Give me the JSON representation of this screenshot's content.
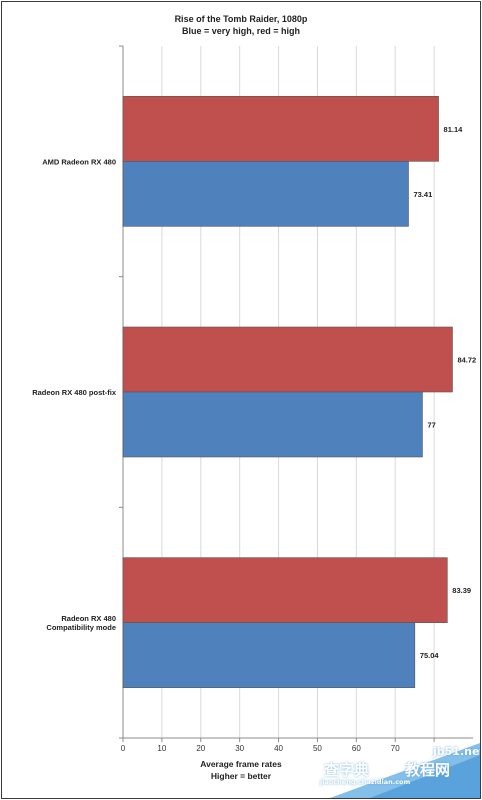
{
  "chart_data": {
    "type": "bar",
    "orientation": "horizontal",
    "title": "Rise of the Tomb Raider, 1080p",
    "subtitle": "Blue = very high, red = high",
    "xlabel": "Average frame rates",
    "xlabel_note": "Higher = better",
    "categories": [
      "AMD Radeon RX 480",
      "Radeon RX 480 post-fix",
      "Radeon RX 480 Compatibility mode"
    ],
    "series": [
      {
        "values": [
          81.14,
          84.72,
          83.39
        ],
        "color": "#c0504d"
      },
      {
        "values": [
          73.41,
          77,
          75.04
        ],
        "color": "#4f81bd"
      }
    ],
    "xticks": [
      "0",
      "10",
      "20",
      "30",
      "40",
      "50",
      "60",
      "70"
    ],
    "xlim": [
      0,
      90
    ],
    "grid": true
  },
  "watermark": {
    "line1": "jb51.net",
    "line2": "教程网",
    "line3": "jiaocheng.chazidian.com",
    "line4": "查字典"
  }
}
